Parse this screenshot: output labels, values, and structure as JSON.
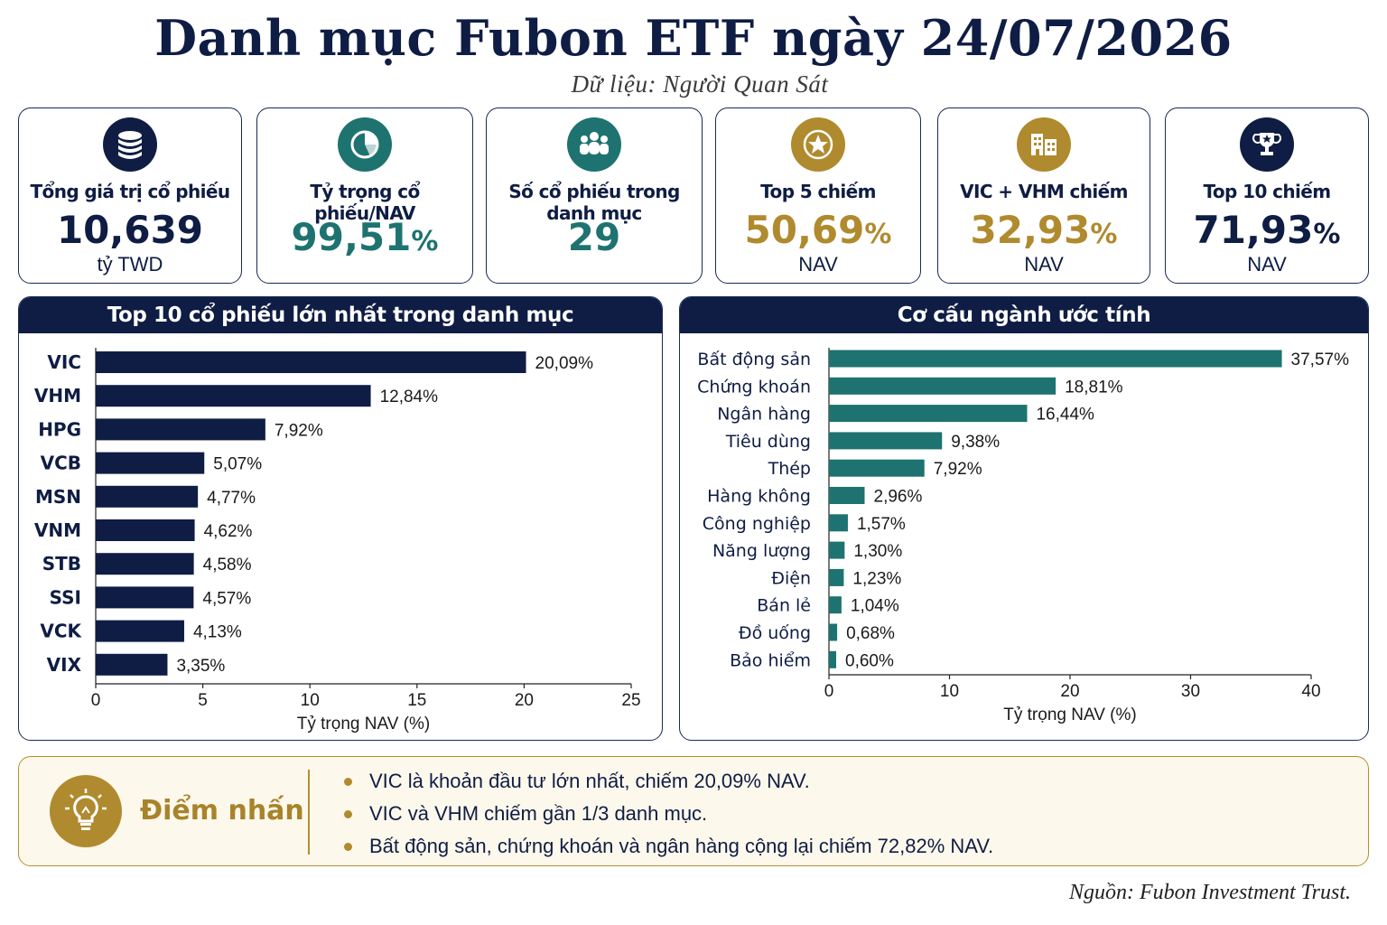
{
  "header": {
    "title": "Danh mục Fubon ETF ngày 24/07/2026",
    "subtitle": "Dữ liệu: Người Quan Sát"
  },
  "colors": {
    "navy": "#0f1d44",
    "teal": "#1e7370",
    "gold": "#b08a2e"
  },
  "kpis": [
    {
      "label": "Tổng giá trị cổ phiếu",
      "value": "10,639",
      "pct": "",
      "unit": "tỷ TWD",
      "icon": "coins-stack-icon",
      "icon_color": "#0f1d44",
      "value_color": "#0f1d44"
    },
    {
      "label": "Tỷ trọng cổ phiếu/NAV",
      "value": "99,51",
      "pct": "%",
      "unit": "",
      "icon": "pie-chart-icon",
      "icon_color": "#1e7370",
      "value_color": "#1e7370"
    },
    {
      "label": "Số cổ phiếu trong danh mục",
      "value": "29",
      "pct": "",
      "unit": "",
      "icon": "people-group-icon",
      "icon_color": "#1e7370",
      "value_color": "#1e7370"
    },
    {
      "label": "Top 5 chiếm",
      "value": "50,69",
      "pct": "%",
      "unit": "NAV",
      "icon": "star-icon",
      "icon_color": "#b08a2e",
      "value_color": "#b08a2e"
    },
    {
      "label": "VIC + VHM chiếm",
      "value": "32,93",
      "pct": "%",
      "unit": "NAV",
      "icon": "buildings-icon",
      "icon_color": "#b08a2e",
      "value_color": "#b08a2e"
    },
    {
      "label": "Top 10 chiếm",
      "value": "71,93",
      "pct": "%",
      "unit": "NAV",
      "icon": "trophy-icon",
      "icon_color": "#0f1d44",
      "value_color": "#0f1d44"
    }
  ],
  "chart_data": [
    {
      "type": "bar",
      "orientation": "horizontal",
      "title": "Top 10 cổ phiếu lớn nhất trong danh mục",
      "categories": [
        "VIC",
        "VHM",
        "HPG",
        "VCB",
        "MSN",
        "VNM",
        "STB",
        "SSI",
        "VCK",
        "VIX"
      ],
      "values": [
        20.09,
        12.84,
        7.92,
        5.07,
        4.77,
        4.62,
        4.58,
        4.57,
        4.13,
        3.35
      ],
      "value_labels": [
        "20,09%",
        "12,84%",
        "7,92%",
        "5,07%",
        "4,77%",
        "4,62%",
        "4,58%",
        "4,57%",
        "4,13%",
        "3,35%"
      ],
      "xlabel": "Tỷ trọng NAV (%)",
      "xlim": [
        0,
        25
      ],
      "xticks": [
        0,
        5,
        10,
        15,
        20,
        25
      ],
      "grid": false,
      "color": "#0f1d44"
    },
    {
      "type": "bar",
      "orientation": "horizontal",
      "title": "Cơ cấu ngành ước tính",
      "categories": [
        "Bất động sản",
        "Chứng khoán",
        "Ngân hàng",
        "Tiêu dùng",
        "Thép",
        "Hàng không",
        "Công nghiệp",
        "Năng lượng",
        "Điện",
        "Bán lẻ",
        "Đồ uống",
        "Bảo hiểm"
      ],
      "values": [
        37.57,
        18.81,
        16.44,
        9.38,
        7.92,
        2.96,
        1.57,
        1.3,
        1.23,
        1.04,
        0.68,
        0.6
      ],
      "value_labels": [
        "37,57%",
        "18,81%",
        "16,44%",
        "9,38%",
        "7,92%",
        "2,96%",
        "1,57%",
        "1,30%",
        "1,23%",
        "1,04%",
        "0,68%",
        "0,60%"
      ],
      "xlabel": "Tỷ trọng NAV (%)",
      "xlim": [
        0,
        40
      ],
      "xticks": [
        0,
        10,
        20,
        30,
        40
      ],
      "grid": false,
      "color": "#1e7370"
    }
  ],
  "highlights": {
    "title": "Điểm nhấn",
    "icon": "lightbulb-icon",
    "items": [
      "VIC là khoản đầu tư lớn nhất, chiếm 20,09% NAV.",
      "VIC và VHM chiếm gần 1/3 danh mục.",
      "Bất động sản, chứng khoán và ngân hàng cộng lại chiếm 72,82% NAV."
    ]
  },
  "footer": {
    "source": "Nguồn: Fubon Investment Trust."
  }
}
